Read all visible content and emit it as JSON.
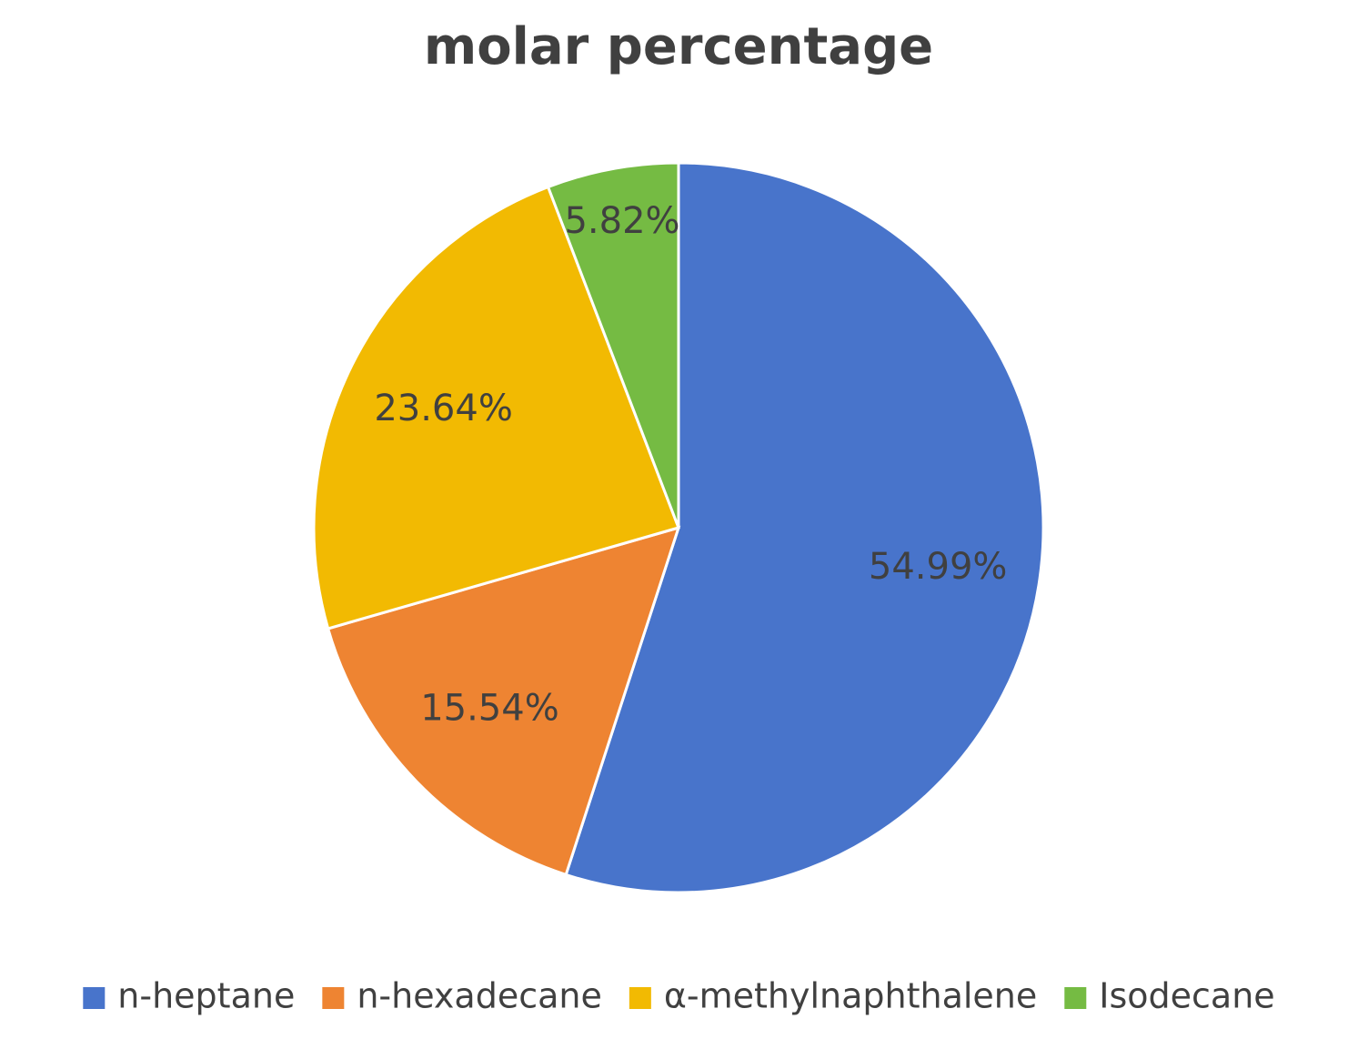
{
  "chart_data": {
    "type": "pie",
    "title": "molar percentage",
    "categories": [
      "n-heptane",
      "n-hexadecane",
      "α-methylnaphthalene",
      "Isodecane"
    ],
    "values": [
      54.99,
      15.54,
      23.64,
      5.82
    ],
    "value_labels": [
      "54.99%",
      "15.54%",
      "23.64%",
      "5.82%"
    ],
    "colors": [
      "#4874cb",
      "#ee8432",
      "#f2ba02",
      "#75bb43"
    ],
    "legend": "bottom"
  }
}
